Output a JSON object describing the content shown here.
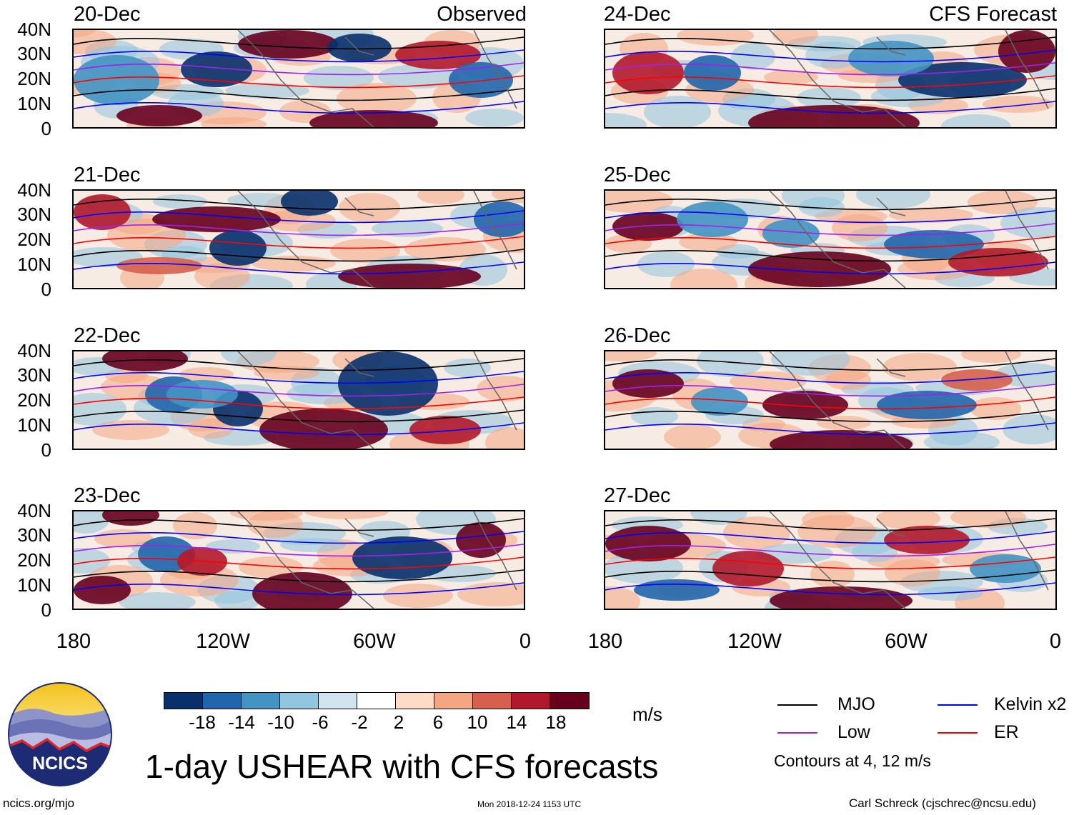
{
  "panels": [
    {
      "date": "20-Dec",
      "corner": "Observed"
    },
    {
      "date": "21-Dec",
      "corner": ""
    },
    {
      "date": "22-Dec",
      "corner": ""
    },
    {
      "date": "23-Dec",
      "corner": ""
    },
    {
      "date": "24-Dec",
      "corner": "CFS Forecast"
    },
    {
      "date": "25-Dec",
      "corner": ""
    },
    {
      "date": "26-Dec",
      "corner": ""
    },
    {
      "date": "27-Dec",
      "corner": ""
    }
  ],
  "lat_labels": [
    "40N",
    "30N",
    "20N",
    "10N",
    "0"
  ],
  "lon_labels": [
    "180",
    "120W",
    "60W",
    "0"
  ],
  "colorbar": {
    "ticks": [
      "-18",
      "-14",
      "-10",
      "-6",
      "-2",
      "2",
      "6",
      "10",
      "14",
      "18"
    ],
    "colors": [
      "#08306b",
      "#2166ac",
      "#4393c3",
      "#92c5de",
      "#d1e5f0",
      "#ffffff",
      "#fddbc7",
      "#f4a582",
      "#d6604d",
      "#b2182b",
      "#67001f"
    ],
    "units": "m/s"
  },
  "legend": {
    "items": [
      {
        "label": "MJO",
        "color": "#000000"
      },
      {
        "label": "Kelvin x2",
        "color": "#0000ff"
      },
      {
        "label": "Low",
        "color": "#a020f0"
      },
      {
        "label": "ER",
        "color": "#ff0000"
      }
    ],
    "note": "Contours at 4, 12 m/s"
  },
  "title": "1-day USHEAR with CFS forecasts",
  "logo_text": "NCICS",
  "footer": {
    "left": "ncics.org/mjo",
    "center": "Mon 2018-12-24 1153 UTC",
    "right": "Carl Schreck (cjschrec@ncsu.edu)"
  }
}
